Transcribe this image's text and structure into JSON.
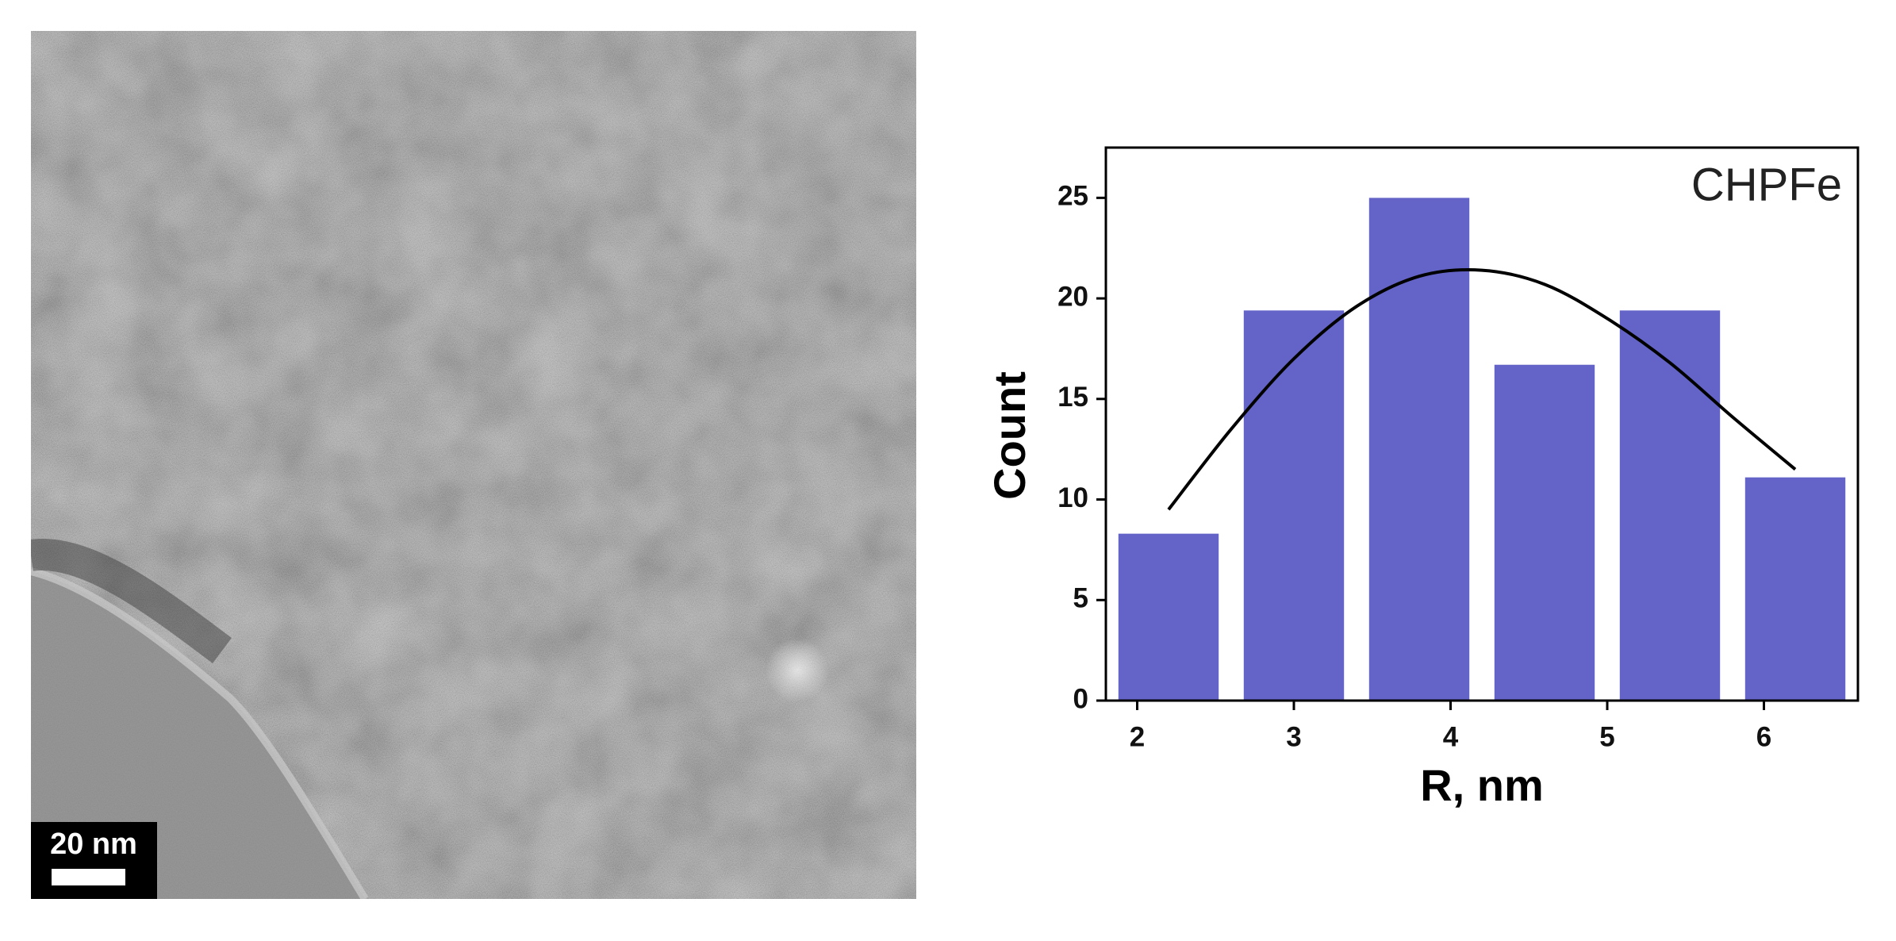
{
  "image": {
    "scale_bar": "20 nm"
  },
  "chart_data": {
    "type": "histogram",
    "annotation": "CHPFe",
    "xlabel": "R, nm",
    "ylabel": "Count",
    "bins": [
      1.8,
      2.6,
      3.4,
      4.2,
      5.0,
      5.8,
      6.6
    ],
    "values": [
      8.3,
      19.4,
      25,
      16.7,
      19.4,
      11.1
    ],
    "color": "#6464c8",
    "fit": {
      "color": "#000000",
      "x": [
        2.2,
        2.6,
        3.0,
        3.4,
        3.8,
        4.2,
        4.6,
        5.0,
        5.4,
        5.8,
        6.2
      ],
      "values": [
        9.5,
        13.5,
        17.0,
        19.6,
        21.1,
        21.4,
        20.7,
        19.0,
        16.8,
        14.1,
        11.5
      ]
    },
    "xlim": [
      1.8,
      6.6
    ],
    "xticks": [
      2,
      3,
      4,
      5,
      6
    ],
    "ylim": [
      0,
      27.5
    ],
    "yticks": [
      0,
      5,
      10,
      15,
      20,
      25
    ]
  }
}
